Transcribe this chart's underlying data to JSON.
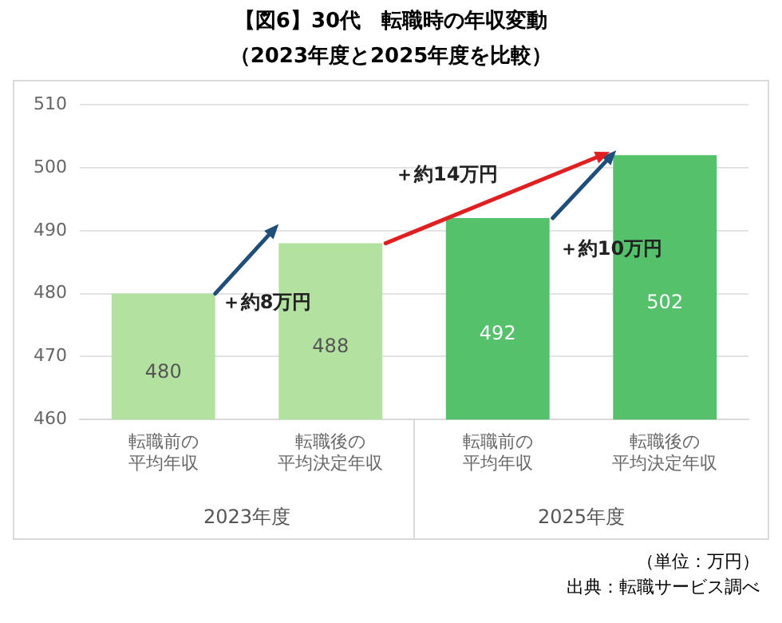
{
  "chart_data": {
    "type": "bar",
    "title": "【図6】30代　転職時の年収変動",
    "subtitle": "（2023年度と2025年度を比較）",
    "categories": [
      "転職前の平均年収",
      "転職後の平均決定年収",
      "転職前の平均年収",
      "転職後の平均決定年収"
    ],
    "values": [
      480,
      488,
      492,
      502
    ],
    "colors": [
      "#b3e2a0",
      "#b3e2a0",
      "#55c16b",
      "#55c16b"
    ],
    "ylim": [
      460,
      510
    ],
    "yticks": [
      460,
      470,
      480,
      490,
      500,
      510
    ],
    "grid": "y",
    "legend": false,
    "data_labels": true,
    "annotations": [
      "＋約8万円",
      "＋約14万円",
      {
        "text": "＋約10万円",
        "y": 487
      },
      "2023年度",
      "2025年度",
      "（単位：万円）",
      "出典：転職サービス調べ"
    ]
  }
}
